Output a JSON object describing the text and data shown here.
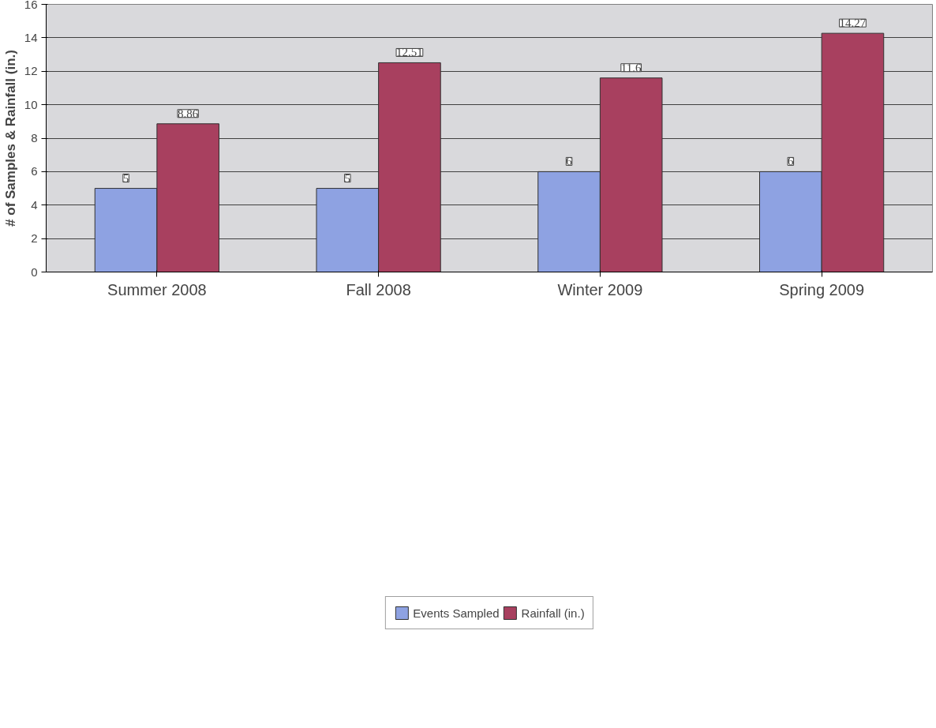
{
  "chart_data": {
    "type": "bar",
    "ylabel": "# of Samples & Rainfall (in.)",
    "categories": [
      "Summer 2008",
      "Fall 2008",
      "Winter 2009",
      "Spring 2009"
    ],
    "series": [
      {
        "name": "Events Sampled",
        "color": "#8ea2e2",
        "values": [
          5,
          5,
          6,
          6
        ]
      },
      {
        "name": "Rainfall (in.)",
        "color": "#a8405f",
        "values": [
          8.86,
          12.51,
          11.6,
          14.27
        ]
      }
    ],
    "ylim": [
      0,
      16
    ],
    "yticks": [
      0,
      2,
      4,
      6,
      8,
      10,
      12,
      14,
      16
    ],
    "grid": "y",
    "legend": "bottom",
    "data_labels": true
  }
}
